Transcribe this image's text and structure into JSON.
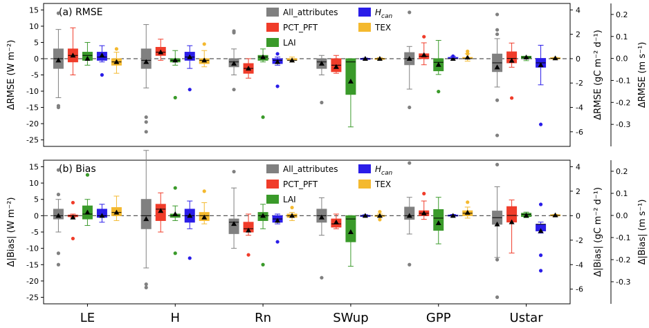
{
  "colors": {
    "All_attributes": "#808080",
    "PCT_PFT": "#f03c2a",
    "LAI": "#3a9a2a",
    "Hcan": "#2a1de8",
    "TEX": "#f4b92f"
  },
  "legend": [
    {
      "key": "All_attributes",
      "label": "All_attributes",
      "sub": ""
    },
    {
      "key": "PCT_PFT",
      "label": "PCT_PFT",
      "sub": ""
    },
    {
      "key": "LAI",
      "label": "LAI",
      "sub": ""
    },
    {
      "key": "Hcan",
      "label": "H",
      "sub": "can"
    },
    {
      "key": "TEX",
      "label": "TEX",
      "sub": ""
    }
  ],
  "categories": [
    "LE",
    "H",
    "Rn",
    "SWup",
    "GPP",
    "Ustar"
  ],
  "series_keys": [
    "All_attributes",
    "PCT_PFT",
    "LAI",
    "Hcan",
    "TEX"
  ],
  "panels": [
    {
      "title": "(a) RMSE",
      "left_axis": {
        "label": "ΔRMSE (W m⁻²)",
        "ylim": [
          -27,
          17
        ],
        "ticks": [
          15,
          10,
          5,
          0,
          -5,
          -10,
          -15,
          -20,
          -25
        ]
      },
      "right_axis1": {
        "label": "ΔRMSE (gC m⁻² d⁻¹)",
        "ylim": [
          -7.2,
          4.53
        ],
        "ticks": [
          4,
          2,
          0,
          -2,
          -4,
          -6
        ]
      },
      "right_axis2": {
        "label": "ΔRMSE (m s⁻¹)",
        "ylim": [
          -0.4,
          0.25
        ],
        "ticks": [
          0.2,
          0.1,
          0.0,
          -0.1,
          -0.2,
          -0.3
        ]
      },
      "boxes": {
        "LE": [
          {
            "wl": -12,
            "q1": -3,
            "med": 0,
            "q3": 3,
            "wh": 9,
            "mean": -0.5,
            "fl": [
              14,
              -14.5,
              -15
            ]
          },
          {
            "wl": -5,
            "q1": -1,
            "med": 1,
            "q3": 3,
            "wh": 9.5,
            "mean": 1,
            "fl": []
          },
          {
            "wl": -2,
            "q1": -0.5,
            "med": 1,
            "q3": 2,
            "wh": 5,
            "mean": 0,
            "fl": []
          },
          {
            "wl": -1,
            "q1": -0.5,
            "med": 0.5,
            "q3": 2,
            "wh": 4,
            "mean": 1,
            "fl": [
              -5
            ]
          },
          {
            "wl": -4.5,
            "q1": -2,
            "med": -1,
            "q3": 0,
            "wh": 2,
            "mean": -1,
            "fl": [
              3
            ]
          }
        ],
        "H": [
          {
            "wl": -9,
            "q1": -3,
            "med": -0.5,
            "q3": 3,
            "wh": 10.5,
            "mean": -1,
            "fl": [
              -18,
              -19.5,
              -22.5
            ]
          },
          {
            "wl": -0.5,
            "q1": 1,
            "med": 2,
            "q3": 3.5,
            "wh": 6,
            "mean": 2,
            "fl": []
          },
          {
            "wl": -2,
            "q1": -1,
            "med": -0.5,
            "q3": 0,
            "wh": 2.5,
            "mean": -0.5,
            "fl": [
              -12
            ]
          },
          {
            "wl": -3,
            "q1": -0.5,
            "med": 0.5,
            "q3": 2,
            "wh": 4,
            "mean": 0.5,
            "fl": [
              -9.5
            ]
          },
          {
            "wl": -2.5,
            "q1": -1.5,
            "med": -0.5,
            "q3": 0,
            "wh": 2.5,
            "mean": -0.5,
            "fl": [
              4.5
            ]
          }
        ],
        "Rn": [
          {
            "wl": -5,
            "q1": -2.5,
            "med": -1,
            "q3": 0,
            "wh": 3,
            "mean": -1.5,
            "fl": [
              8.5,
              8,
              -9.5
            ]
          },
          {
            "wl": -6,
            "q1": -4.5,
            "med": -3,
            "q3": -1.5,
            "wh": 0,
            "mean": -3,
            "fl": []
          },
          {
            "wl": -1,
            "q1": -0.5,
            "med": 0.5,
            "q3": 1,
            "wh": 3,
            "mean": 0.5,
            "fl": [
              -18
            ]
          },
          {
            "wl": -2,
            "q1": -1.5,
            "med": -0.5,
            "q3": 0,
            "wh": 0.5,
            "mean": -1,
            "fl": [
              1.5,
              -8.5
            ]
          },
          {
            "wl": -1,
            "q1": -0.5,
            "med": -0.5,
            "q3": 0,
            "wh": 0.5,
            "mean": -0.5,
            "fl": []
          }
        ],
        "SWup": [
          {
            "wl": -5,
            "q1": -3,
            "med": -1,
            "q3": 0,
            "wh": 1,
            "mean": -1.5,
            "fl": [
              -13.5
            ]
          },
          {
            "wl": -4.5,
            "q1": -4,
            "med": -2,
            "q3": 0,
            "wh": 1,
            "mean": -2.5,
            "fl": []
          },
          {
            "wl": -21,
            "q1": -11,
            "med": -1,
            "q3": 0,
            "wh": 0,
            "mean": -7,
            "fl": []
          },
          {
            "wl": -0.2,
            "q1": -0.1,
            "med": 0,
            "q3": 0.1,
            "wh": 0.2,
            "mean": 0,
            "fl": []
          },
          {
            "wl": -0.3,
            "q1": -0.1,
            "med": 0,
            "q3": 0.1,
            "wh": 0.3,
            "mean": 0,
            "fl": []
          }
        ],
        "GPP": [
          {
            "wl": -2.5,
            "q1": -0.5,
            "med": 0,
            "q3": 0.5,
            "wh": 1,
            "mean": 0,
            "fl": [
              3.8,
              -4
            ]
          },
          {
            "wl": -0.5,
            "q1": 0,
            "med": 0.2,
            "q3": 0.4,
            "wh": 1.3,
            "mean": 0.3,
            "fl": [
              1.8
            ]
          },
          {
            "wl": -1.3,
            "q1": -1,
            "med": -0.3,
            "q3": 0,
            "wh": 1.5,
            "mean": -0.5,
            "fl": [
              -2.7
            ]
          },
          {
            "wl": 0,
            "q1": 0,
            "med": 0,
            "q3": 0.1,
            "wh": 0.2,
            "mean": 0,
            "fl": [
              0.2
            ]
          },
          {
            "wl": -0.2,
            "q1": 0,
            "med": 0,
            "q3": 0.1,
            "wh": 0.4,
            "mean": 0.1,
            "fl": [
              0.6,
              0.4
            ]
          }
        ],
        "Ustar": [
          {
            "wl": -0.13,
            "q1": -0.06,
            "med": -0.02,
            "q3": 0.02,
            "wh": 0.09,
            "mean": -0.04,
            "fl": [
              0.2,
              0.13,
              0.11,
              -0.19,
              -0.35
            ]
          },
          {
            "wl": -0.04,
            "q1": -0.02,
            "med": 0,
            "q3": 0.03,
            "wh": 0.07,
            "mean": -0.01,
            "fl": [
              -0.18
            ]
          },
          {
            "wl": -0.01,
            "q1": 0,
            "med": 0.005,
            "q3": 0.01,
            "wh": 0.01,
            "mean": 0.005,
            "fl": []
          },
          {
            "wl": -0.12,
            "q1": -0.04,
            "med": -0.02,
            "q3": 0,
            "wh": 0.06,
            "mean": -0.03,
            "fl": [
              -0.3
            ]
          },
          {
            "wl": -0.005,
            "q1": 0,
            "med": 0,
            "q3": 0.003,
            "wh": 0.005,
            "mean": 0.001,
            "fl": []
          }
        ]
      }
    },
    {
      "title": "(b) Bias",
      "left_axis": {
        "label": "Δ|Bias| (W m⁻²)",
        "ylim": [
          -27,
          17
        ],
        "ticks": [
          15,
          10,
          5,
          0,
          -5,
          -10,
          -15,
          -20,
          -25
        ]
      },
      "right_axis1": {
        "label": "Δ|Bias| (gC m⁻² d⁻¹)",
        "ylim": [
          -7.2,
          4.53
        ],
        "ticks": [
          4,
          2,
          0,
          -2,
          -4,
          -6
        ]
      },
      "right_axis2": {
        "label": "Δ|Bias| (m s⁻¹)",
        "ylim": [
          -0.4,
          0.25
        ],
        "ticks": [
          0.2,
          0.1,
          0.0,
          -0.1,
          -0.2,
          -0.3
        ]
      },
      "boxes": {
        "LE": [
          {
            "wl": -5,
            "q1": -1,
            "med": 0,
            "q3": 2,
            "wh": 5,
            "mean": 0,
            "fl": [
              14,
              6.5,
              -11.5,
              -15
            ]
          },
          {
            "wl": -0.5,
            "q1": -0.3,
            "med": 0,
            "q3": 0.2,
            "wh": 0.5,
            "mean": -0.5,
            "fl": [
              4,
              -7
            ]
          },
          {
            "wl": -3,
            "q1": -1,
            "med": 0.5,
            "q3": 3,
            "wh": 5,
            "mean": 1,
            "fl": [
              12.5
            ]
          },
          {
            "wl": -2,
            "q1": -0.5,
            "med": 0,
            "q3": 2,
            "wh": 3.5,
            "mean": 0,
            "fl": []
          },
          {
            "wl": -1.5,
            "q1": 0,
            "med": 1,
            "q3": 2.5,
            "wh": 6,
            "mean": 1,
            "fl": []
          }
        ],
        "H": [
          {
            "wl": -16,
            "q1": -4,
            "med": 0,
            "q3": 5,
            "wh": 20,
            "mean": -1,
            "fl": [
              -21,
              -22
            ]
          },
          {
            "wl": -5,
            "q1": -1.5,
            "med": 2,
            "q3": 3.5,
            "wh": 7,
            "mean": 1.5,
            "fl": []
          },
          {
            "wl": -1.5,
            "q1": -0.5,
            "med": 0,
            "q3": 0.5,
            "wh": 3,
            "mean": 0.5,
            "fl": [
              8.5,
              -11.5
            ]
          },
          {
            "wl": -4,
            "q1": -2,
            "med": 0,
            "q3": 2,
            "wh": 4.5,
            "mean": 0,
            "fl": [
              -13
            ]
          },
          {
            "wl": -2.5,
            "q1": -1.5,
            "med": 0,
            "q3": 1,
            "wh": 4,
            "mean": -0.5,
            "fl": [
              7.5
            ]
          }
        ],
        "Rn": [
          {
            "wl": -10,
            "q1": -5.5,
            "med": -2,
            "q3": -1,
            "wh": 8.5,
            "mean": -2.5,
            "fl": [
              13.5
            ]
          },
          {
            "wl": -6,
            "q1": -5,
            "med": -4,
            "q3": -2,
            "wh": 0.5,
            "mean": -4.5,
            "fl": [
              -12
            ]
          },
          {
            "wl": -4,
            "q1": -1.5,
            "med": 0,
            "q3": 1,
            "wh": 3.5,
            "mean": 0,
            "fl": [
              -15
            ]
          },
          {
            "wl": -2.5,
            "q1": -2,
            "med": -1,
            "q3": 0,
            "wh": 0.5,
            "mean": -1.5,
            "fl": [
              -8
            ]
          },
          {
            "wl": -1.5,
            "q1": -0.5,
            "med": 0,
            "q3": 0.5,
            "wh": 1,
            "mean": 0,
            "fl": [
              2.5
            ]
          }
        ],
        "SWup": [
          {
            "wl": -6,
            "q1": -2,
            "med": 0,
            "q3": 2,
            "wh": 5.5,
            "mean": -0.5,
            "fl": [
              -19
            ]
          },
          {
            "wl": -4,
            "q1": -3.5,
            "med": -2.5,
            "q3": -1,
            "wh": 0.5,
            "mean": -2,
            "fl": []
          },
          {
            "wl": -15.5,
            "q1": -8,
            "med": -1,
            "q3": 0,
            "wh": 0,
            "mean": -5,
            "fl": []
          },
          {
            "wl": -0.3,
            "q1": -0.1,
            "med": 0,
            "q3": 0.1,
            "wh": 0.3,
            "mean": 0,
            "fl": []
          },
          {
            "wl": -0.5,
            "q1": -0.2,
            "med": 0,
            "q3": 0.1,
            "wh": 0.5,
            "mean": 0,
            "fl": [
              1.2,
              -1.2
            ]
          }
        ],
        "GPP": [
          {
            "wl": -1.5,
            "q1": -0.3,
            "med": 0,
            "q3": 0.7,
            "wh": 1.5,
            "mean": 0,
            "fl": [
              4.3,
              -4
            ]
          },
          {
            "wl": -0.3,
            "q1": 0,
            "med": 0.2,
            "q3": 0.4,
            "wh": 1.2,
            "mean": 0.2,
            "fl": [
              1.8
            ]
          },
          {
            "wl": -2.3,
            "q1": -1.2,
            "med": -0.2,
            "q3": 0.5,
            "wh": 1.5,
            "mean": -0.6,
            "fl": []
          },
          {
            "wl": 0,
            "q1": 0,
            "med": 0,
            "q3": 0.05,
            "wh": 0.1,
            "mean": 0,
            "fl": []
          },
          {
            "wl": -0.2,
            "q1": 0,
            "med": 0.2,
            "q3": 0.4,
            "wh": 0.7,
            "mean": 0.25,
            "fl": [
              1.1
            ]
          }
        ],
        "Ustar": [
          {
            "wl": -0.19,
            "q1": -0.04,
            "med": -0.01,
            "q3": 0.02,
            "wh": 0.13,
            "mean": -0.04,
            "fl": [
              0.23,
              -0.2,
              -0.37
            ]
          },
          {
            "wl": -0.17,
            "q1": -0.03,
            "med": 0,
            "q3": 0.04,
            "wh": 0.07,
            "mean": -0.03,
            "fl": []
          },
          {
            "wl": -0.01,
            "q1": -0.005,
            "med": 0.005,
            "q3": 0.01,
            "wh": 0.015,
            "mean": 0,
            "fl": []
          },
          {
            "wl": -0.08,
            "q1": -0.07,
            "med": -0.04,
            "q3": -0.04,
            "wh": -0.03,
            "mean": -0.07,
            "fl": [
              0.05,
              -0.18,
              -0.25
            ]
          },
          {
            "wl": -0.005,
            "q1": 0,
            "med": 0,
            "q3": 0.003,
            "wh": 0.005,
            "mean": 0.001,
            "fl": []
          }
        ]
      }
    }
  ],
  "chart_data": [
    {
      "type": "box",
      "title": "(a) RMSE",
      "categories": [
        "LE",
        "H",
        "Rn",
        "SWup",
        "GPP",
        "Ustar"
      ],
      "series": [
        "All_attributes",
        "PCT_PFT",
        "LAI",
        "Hcan",
        "TEX"
      ],
      "ylabel": "ΔRMSE (W m⁻²)",
      "ylim": [
        -27,
        17
      ],
      "y2label": "ΔRMSE (gC m⁻² d⁻¹)",
      "y3label": "ΔRMSE (m s⁻¹)",
      "legend": "top-center"
    },
    {
      "type": "box",
      "title": "(b) Bias",
      "categories": [
        "LE",
        "H",
        "Rn",
        "SWup",
        "GPP",
        "Ustar"
      ],
      "series": [
        "All_attributes",
        "PCT_PFT",
        "LAI",
        "Hcan",
        "TEX"
      ],
      "ylabel": "Δ|Bias| (W m⁻²)",
      "ylim": [
        -27,
        17
      ],
      "y2label": "Δ|Bias| (gC m⁻² d⁻¹)",
      "y3label": "Δ|Bias| (m s⁻¹)",
      "legend": "top-center"
    }
  ]
}
